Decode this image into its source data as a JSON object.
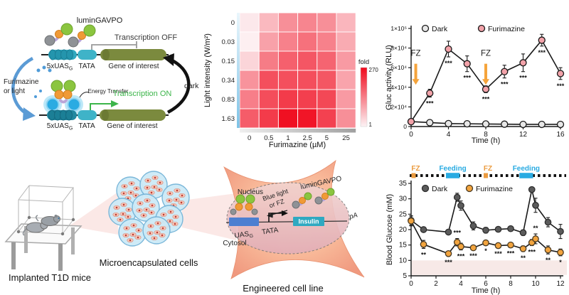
{
  "colors": {
    "accent_teal": "#3fb3c8",
    "gene_olive": "#7b8a3e",
    "protein_green": "#8bc53f",
    "protein_orange": "#f09a36",
    "luciferase_blue": "#2aabe2",
    "arrow_blue": "#5b9bd5",
    "fz_orange": "#f5a43c",
    "feeding_blue": "#29abe2",
    "transcription_on_green": "#3cb54a",
    "heat_red": "#f0091c"
  },
  "panel_a": {
    "lumingavpo": "luminGAVPO",
    "transcription_off": "Transcription OFF",
    "transcription_on": "Transcription ON",
    "uas_main": "5xUAS",
    "uas_sub": "G",
    "tata": "TATA",
    "gene_of_interest": "Gene of interest",
    "furimazine_line1": "Furimazine",
    "furimazine_line2": "or light",
    "dark": "dark",
    "energy_transfer": "Energy Transfer"
  },
  "panel_bottom": {
    "implanted_mice": "Implanted T1D mice",
    "microencapsulated": "Microencapsulated cells",
    "engineered": "Engineered cell line",
    "cell": {
      "nucleus": "Nucleus",
      "cytosol": "Cytosol",
      "blue_light": "Blue light",
      "or_fz": "or FZ",
      "lumingavpo": "luminGAVPO",
      "uas_main": "UAS",
      "uas_sub": "G",
      "tata": "TATA",
      "insulin": "Insulin",
      "pa": "pA"
    }
  },
  "chart_data": [
    {
      "type": "heatmap",
      "xlabel": "Furimazine (µM)",
      "ylabel": "Light intensity (W/m²)",
      "x_categories": [
        "0",
        "0.5",
        "1",
        "2.5",
        "5",
        "25"
      ],
      "y_categories": [
        "0",
        "0.03",
        "0.15",
        "0.34",
        "0.83",
        "1.63"
      ],
      "values": [
        [
          14,
          68,
          116,
          127,
          116,
          71
        ],
        [
          6,
          95,
          132,
          151,
          132,
          84
        ],
        [
          36,
          138,
          170,
          181,
          165,
          103
        ],
        [
          111,
          189,
          189,
          191,
          182,
          92
        ],
        [
          135,
          192,
          213,
          208,
          198,
          103
        ],
        [
          175,
          213,
          262,
          256,
          206,
          116
        ]
      ],
      "colorbar": {
        "label": "fold",
        "max_label": "270",
        "min_label": "1",
        "max": 270,
        "min": 1,
        "max_color": "#f0091c",
        "min_color": "#fdf3f5"
      }
    },
    {
      "type": "line",
      "xlabel": "Time (h)",
      "ylabel": "Gluc activity (RLU)",
      "xlim": [
        0,
        16
      ],
      "xticks": [
        0,
        4,
        8,
        12,
        16
      ],
      "ylim": [
        0,
        100000
      ],
      "yticks": [
        {
          "v": 0,
          "label": "0"
        },
        {
          "v": 20000,
          "label": "2×10⁴"
        },
        {
          "v": 40000,
          "label": "4×10⁴"
        },
        {
          "v": 60000,
          "label": "6×10⁴"
        },
        {
          "v": 80000,
          "label": "8×10⁴"
        },
        {
          "v": 100000,
          "label": "1×10⁵"
        }
      ],
      "series": [
        {
          "name": "Dark",
          "marker_fill": "#e7e7e7",
          "marker_stroke": "#1a1a1a",
          "line_color": "#1a1a1a",
          "x": [
            0,
            2,
            4,
            6,
            8,
            10,
            12,
            14,
            16
          ],
          "y": [
            5000,
            4000,
            3000,
            2800,
            2600,
            2400,
            2200,
            2200,
            2200
          ],
          "err": [
            600,
            500,
            400,
            400,
            400,
            400,
            400,
            400,
            400
          ]
        },
        {
          "name": "Furimazine",
          "marker_fill": "#f2a2a9",
          "marker_stroke": "#1a1a1a",
          "line_color": "#1a1a1a",
          "x": [
            0,
            2,
            4,
            6,
            8,
            10,
            12,
            14,
            16
          ],
          "y": [
            5000,
            34000,
            79000,
            64000,
            38000,
            56000,
            65000,
            88000,
            54000
          ],
          "err": [
            800,
            4000,
            8000,
            8000,
            3500,
            6500,
            9000,
            6000,
            6000
          ],
          "sig": [
            "",
            "***",
            "***",
            "***",
            "***",
            "***",
            "***",
            "***",
            "***"
          ]
        }
      ],
      "fz_arrows": {
        "label": "FZ",
        "color": "#f5a43c",
        "x": [
          0.5,
          8
        ],
        "label_v": 72000,
        "from_v": 64000,
        "to_v": 44000
      }
    },
    {
      "type": "line",
      "xlabel": "Time (h)",
      "ylabel": "Blood Glucose (mM)",
      "xlim": [
        0,
        12
      ],
      "xticks": [
        0,
        2,
        4,
        6,
        8,
        10,
        12
      ],
      "ylim": [
        5,
        35
      ],
      "yticks": [
        {
          "v": 5,
          "label": "5"
        },
        {
          "v": 10,
          "label": "10"
        },
        {
          "v": 15,
          "label": "15"
        },
        {
          "v": 20,
          "label": "20"
        },
        {
          "v": 25,
          "label": "25"
        },
        {
          "v": 30,
          "label": "30"
        },
        {
          "v": 35,
          "label": "35"
        }
      ],
      "band": {
        "from": 5.3,
        "to": 10,
        "color": "#f7e9e7"
      },
      "timeline": {
        "fz_label": "FZ",
        "feeding_label": "Feeding",
        "fz_color": "#eb9b3f",
        "feeding_color": "#29abe2",
        "fz_x": [
          0.2,
          6
        ],
        "feeding_spans": [
          [
            2.8,
            3.9
          ],
          [
            8.7,
            9.8
          ]
        ]
      },
      "series": [
        {
          "name": "Dark",
          "marker_fill": "#5b5b5b",
          "marker_stroke": "#2e2e2e",
          "line_color": "#1a1a1a",
          "x": [
            0,
            1,
            3,
            3.7,
            4,
            5,
            6,
            7,
            8,
            9,
            9.7,
            10,
            11,
            12
          ],
          "y": [
            23,
            20,
            19.2,
            30.5,
            27.8,
            21.2,
            19.8,
            20.1,
            20.3,
            19,
            33,
            27.9,
            22.4,
            19.4
          ],
          "err": [
            1.5,
            0.8,
            0.8,
            1.3,
            1.5,
            1.3,
            0.9,
            0.6,
            0.6,
            0.9,
            0.6,
            2.3,
            1.5,
            2.3
          ]
        },
        {
          "name": "Furimazine",
          "marker_fill": "#f2a43e",
          "marker_stroke": "#4a3a22",
          "line_color": "#1a1a1a",
          "x": [
            0,
            1,
            3,
            3.7,
            4,
            5,
            6,
            7,
            8,
            9,
            9.7,
            10,
            11,
            12
          ],
          "y": [
            22.8,
            15.2,
            12.2,
            15.9,
            14.5,
            14.1,
            15.7,
            14.8,
            15,
            13.8,
            15.8,
            17,
            13.4,
            12.6
          ],
          "err": [
            1.6,
            1.3,
            0.7,
            1.2,
            1.1,
            0.6,
            0.5,
            0.6,
            0.6,
            0.9,
            1,
            1.6,
            1.3,
            1.1
          ],
          "sig": [
            "",
            "**",
            "***",
            "***",
            "***",
            "***",
            "*",
            "***",
            "***",
            "**",
            "***",
            "**",
            "**",
            "*"
          ],
          "sig_above": [
            3,
            11
          ]
        }
      ]
    }
  ]
}
